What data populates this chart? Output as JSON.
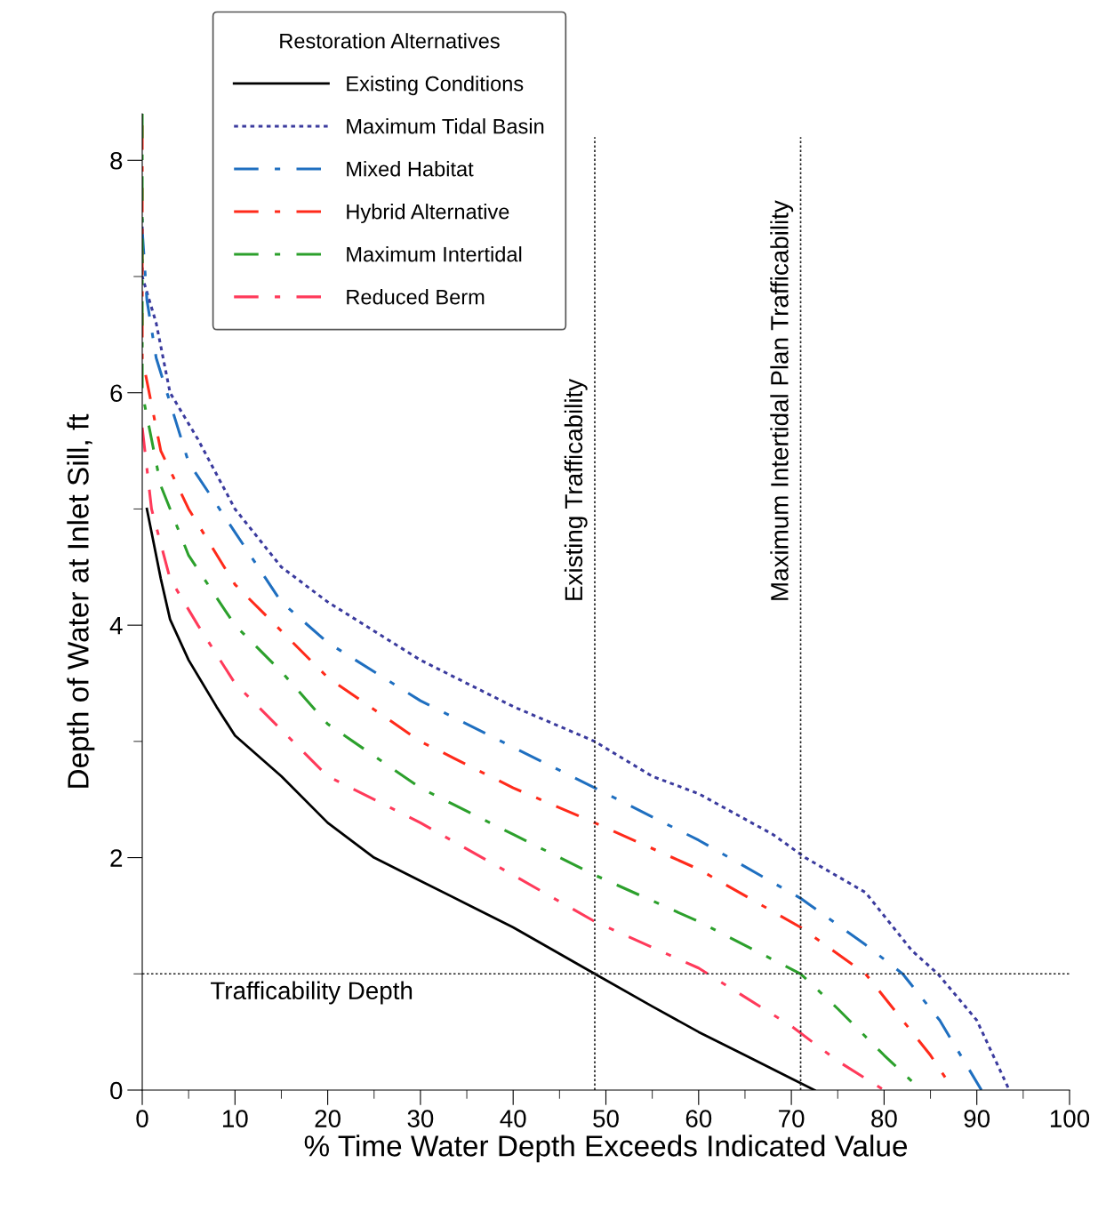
{
  "chart_data": {
    "type": "line",
    "xlabel": "% Time Water Depth Exceeds Indicated Value",
    "ylabel": "Depth of Water at Inlet Sill, ft",
    "legend_title": "Restoration Alternatives",
    "legend": "top left",
    "grid": false,
    "marker": "none",
    "xlim": [
      0,
      100
    ],
    "ylim": [
      0,
      8.4
    ],
    "xticks": [
      0,
      10,
      20,
      30,
      40,
      50,
      60,
      70,
      80,
      90,
      100
    ],
    "yticks": [
      0,
      2,
      4,
      6,
      8
    ],
    "ref_lines": [
      {
        "axis": "x",
        "value": 48.8,
        "label": "Existing Trafficability",
        "color": "#222222",
        "line_style": "dotted"
      },
      {
        "axis": "x",
        "value": 71,
        "label": "Maximum Intertidal Plan Trafficability",
        "color": "#222222",
        "line_style": "dotted"
      },
      {
        "axis": "y",
        "value": 1,
        "label": "Trafficability Depth",
        "color": "#222222",
        "line_style": "dotted"
      }
    ],
    "series": [
      {
        "name": "Existing Conditions",
        "color": "#000000",
        "line_style": "solid",
        "x": [
          0.5,
          1,
          2,
          3,
          5,
          8,
          10,
          15,
          20,
          25,
          30,
          40,
          48.8,
          55,
          60,
          65,
          70,
          72.5
        ],
        "values": [
          5.0,
          4.8,
          4.4,
          4.05,
          3.7,
          3.3,
          3.05,
          2.7,
          2.3,
          2.0,
          1.8,
          1.4,
          1.0,
          0.72,
          0.5,
          0.3,
          0.1,
          0
        ]
      },
      {
        "name": "Maximum Tidal Basin",
        "color": "#3b3b9e",
        "line_style": "dotted",
        "x": [
          0,
          0,
          1.5,
          3,
          6,
          10,
          15,
          20,
          30,
          40,
          48.8,
          55,
          60,
          68,
          71.5,
          78,
          80,
          83,
          85.8,
          90,
          93.5
        ],
        "values": [
          7.5,
          7.0,
          6.6,
          6.0,
          5.6,
          5.0,
          4.5,
          4.2,
          3.7,
          3.3,
          3.0,
          2.7,
          2.55,
          2.2,
          2.0,
          1.7,
          1.5,
          1.2,
          1.0,
          0.6,
          0
        ]
      },
      {
        "name": "Mixed Habitat",
        "color": "#1f6fc0",
        "line_style": "dashed",
        "x": [
          0,
          0.5,
          1.5,
          5,
          10,
          15,
          20,
          30,
          40,
          48.8,
          60,
          71,
          78,
          82,
          86,
          90.5
        ],
        "values": [
          7.4,
          6.8,
          6.3,
          5.4,
          4.8,
          4.2,
          3.85,
          3.35,
          2.95,
          2.6,
          2.15,
          1.65,
          1.25,
          1.0,
          0.6,
          0
        ]
      },
      {
        "name": "Hybrid Alternative",
        "color": "#ff2a1a",
        "line_style": "dashed",
        "x": [
          0,
          0,
          2,
          5,
          10,
          20,
          30,
          40,
          48.8,
          60,
          71,
          78,
          81,
          85,
          87.5
        ],
        "values": [
          8.3,
          6.3,
          5.5,
          5.0,
          4.35,
          3.55,
          3.0,
          2.6,
          2.3,
          1.9,
          1.4,
          1.0,
          0.7,
          0.3,
          0
        ]
      },
      {
        "name": "Maximum Intertidal",
        "color": "#2ca02c",
        "line_style": "dashed",
        "x": [
          0,
          0,
          2,
          5,
          10,
          15,
          20,
          30,
          40,
          48.8,
          60,
          71,
          75,
          80,
          84
        ],
        "values": [
          8.4,
          6.0,
          5.2,
          4.6,
          4.0,
          3.6,
          3.15,
          2.6,
          2.2,
          1.85,
          1.45,
          1.0,
          0.7,
          0.3,
          0
        ]
      },
      {
        "name": "Reduced Berm",
        "color": "#ff3a5a",
        "line_style": "dashed",
        "x": [
          0,
          1,
          3,
          6,
          10,
          15,
          20,
          30,
          40,
          48.8,
          60,
          70,
          75,
          80
        ],
        "values": [
          5.7,
          5.0,
          4.4,
          4.0,
          3.5,
          3.1,
          2.7,
          2.3,
          1.85,
          1.45,
          1.05,
          0.55,
          0.25,
          0
        ]
      }
    ]
  }
}
